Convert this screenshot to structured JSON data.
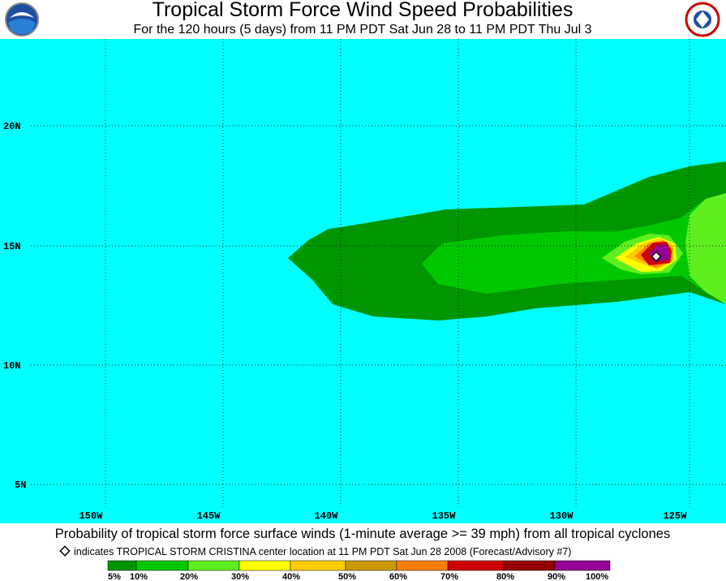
{
  "header": {
    "title": "Tropical Storm Force Wind Speed Probabilities",
    "subtitle": "For the 120 hours (5 days) from 11 PM PDT Sat Jun 28 to 11 PM PDT Thu Jul 3"
  },
  "map": {
    "lat_labels": [
      "20N",
      "15N",
      "10N",
      "5N"
    ],
    "lon_labels": [
      "150W",
      "145W",
      "140W",
      "135W",
      "130W",
      "125W"
    ]
  },
  "footer": {
    "caption": "Probability of tropical storm force surface winds (1-minute average >= 39 mph) from all tropical cyclones",
    "note": "indicates TROPICAL STORM CRISTINA center location at 11 PM PDT Sat Jun 28 2008 (Forecast/Advisory #7)",
    "legend_labels": [
      "5%",
      "10%",
      "20%",
      "30%",
      "40%",
      "50%",
      "60%",
      "70%",
      "80%",
      "90%",
      "100%"
    ]
  }
}
